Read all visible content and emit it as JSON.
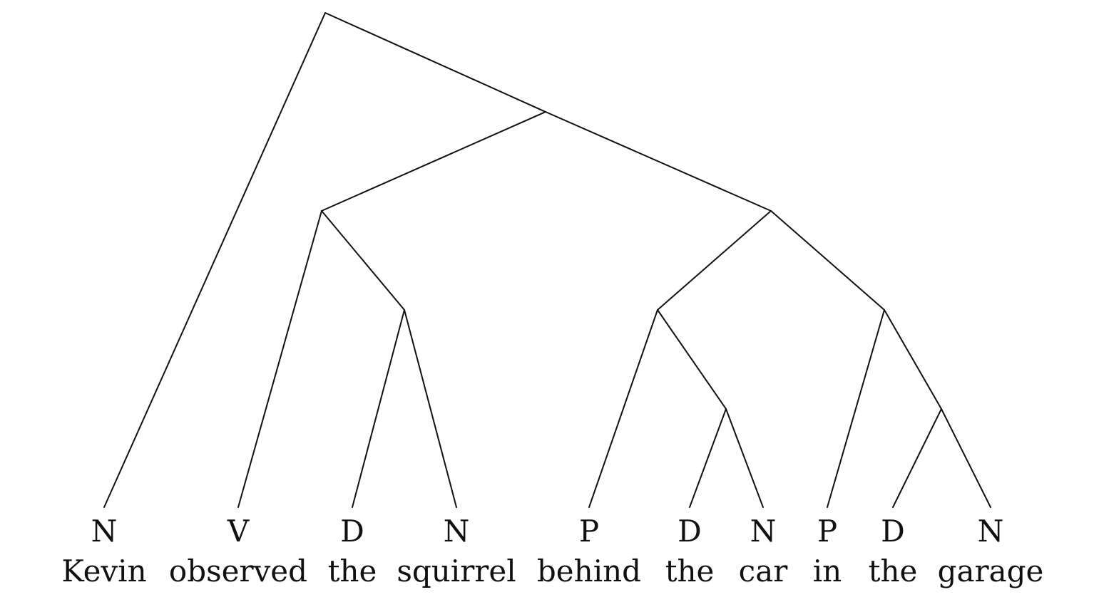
{
  "colors": {
    "line": "#111111",
    "text": "#111111",
    "background": "#ffffff"
  },
  "leaves": [
    {
      "tag": "N",
      "word": "Kevin"
    },
    {
      "tag": "V",
      "word": "observed"
    },
    {
      "tag": "D",
      "word": "the"
    },
    {
      "tag": "N",
      "word": "squirrel"
    },
    {
      "tag": "P",
      "word": "behind"
    },
    {
      "tag": "D",
      "word": "the"
    },
    {
      "tag": "N",
      "word": "car"
    },
    {
      "tag": "P",
      "word": "in"
    },
    {
      "tag": "D",
      "word": "the"
    },
    {
      "tag": "N",
      "word": "garage"
    }
  ],
  "tree": {
    "children": [
      {
        "leaf": 0
      },
      {
        "children": [
          {
            "children": [
              {
                "leaf": 1
              },
              {
                "children": [
                  {
                    "leaf": 2
                  },
                  {
                    "leaf": 3
                  }
                ]
              }
            ]
          },
          {
            "children": [
              {
                "children": [
                  {
                    "leaf": 4
                  },
                  {
                    "children": [
                      {
                        "leaf": 5
                      },
                      {
                        "leaf": 6
                      }
                    ]
                  }
                ]
              },
              {
                "children": [
                  {
                    "leaf": 7
                  },
                  {
                    "children": [
                      {
                        "leaf": 8
                      },
                      {
                        "leaf": 9
                      }
                    ]
                  }
                ]
              }
            ]
          }
        ]
      }
    ]
  }
}
